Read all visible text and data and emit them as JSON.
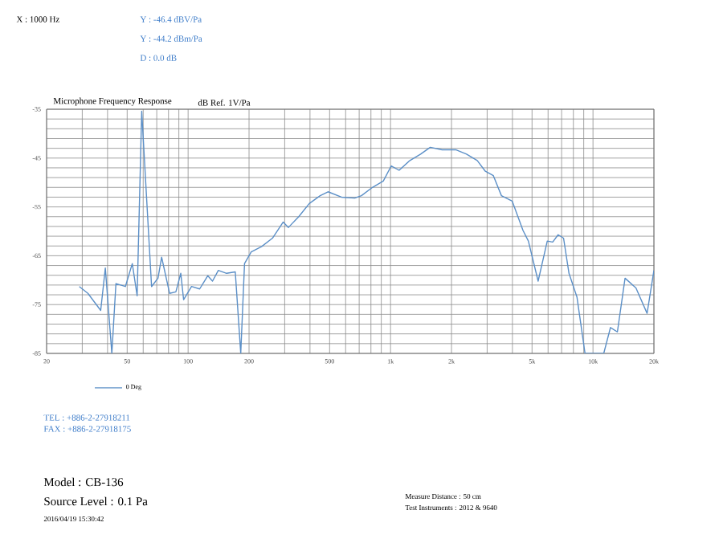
{
  "chart_data": {
    "type": "line",
    "title": "Microphone Frequency Response",
    "subtitle": "dB Ref. 1V/Pa",
    "annotations": [
      "X : 1000 Hz",
      "Y : -46.4 dBV/Pa",
      "Y : -44.2 dBm/Pa",
      "D : 0.0 dB",
      "TEL : +886-2-27918211",
      "FAX : +886-2-27918175",
      "Model : CB-136",
      "Source Level : 0.1 Pa",
      "2016/04/19 15:30:42",
      "Measure Distance : 50 cm",
      "Test Instruments : 2012 & 9640"
    ],
    "log": "x",
    "grid": true,
    "legend": "bottom left",
    "marker": "none",
    "line_style": "solid",
    "xlim": [
      20,
      20000
    ],
    "ylim": [
      -85,
      -35
    ],
    "xticks": [
      20,
      {
        "value": 30,
        "label": null
      },
      {
        "value": 40,
        "label": null
      },
      50,
      {
        "value": 60,
        "label": null
      },
      {
        "value": 70,
        "label": null
      },
      {
        "value": 80,
        "label": null
      },
      {
        "value": 90,
        "label": null
      },
      100,
      200,
      {
        "value": 300,
        "label": null
      },
      {
        "value": 400,
        "label": null
      },
      500,
      {
        "value": 600,
        "label": null
      },
      {
        "value": 700,
        "label": null
      },
      {
        "value": 800,
        "label": null
      },
      {
        "value": 900,
        "label": null
      },
      {
        "value": 1000,
        "label": "1k"
      },
      {
        "value": 2000,
        "label": "2k"
      },
      {
        "value": 3000,
        "label": null
      },
      {
        "value": 4000,
        "label": null
      },
      {
        "value": 5000,
        "label": "5k"
      },
      {
        "value": 6000,
        "label": null
      },
      {
        "value": 7000,
        "label": null
      },
      {
        "value": 8000,
        "label": null
      },
      {
        "value": 9000,
        "label": null
      },
      {
        "value": 10000,
        "label": "10k"
      },
      {
        "value": 20000,
        "label": "20k"
      }
    ],
    "yticks": [
      -85,
      {
        "value": -83,
        "label": null
      },
      {
        "value": -81,
        "label": null
      },
      {
        "value": -79,
        "label": null
      },
      {
        "value": -77,
        "label": null
      },
      -75,
      {
        "value": -73,
        "label": null
      },
      {
        "value": -71,
        "label": null
      },
      {
        "value": -69,
        "label": null
      },
      {
        "value": -67,
        "label": null
      },
      -65,
      {
        "value": -63,
        "label": null
      },
      {
        "value": -61,
        "label": null
      },
      {
        "value": -59,
        "label": null
      },
      {
        "value": -57,
        "label": null
      },
      -55,
      {
        "value": -53,
        "label": null
      },
      {
        "value": -51,
        "label": null
      },
      {
        "value": -49,
        "label": null
      },
      {
        "value": -47,
        "label": null
      },
      -45,
      {
        "value": -43,
        "label": null
      },
      {
        "value": -41,
        "label": null
      },
      {
        "value": -39,
        "label": null
      },
      {
        "value": -37,
        "label": null
      },
      -35
    ],
    "series": [
      {
        "name": "0 Deg",
        "color": "#5b8fc7",
        "x": [
          29,
          32,
          37,
          39,
          42,
          44,
          49,
          53,
          56,
          59,
          66,
          71,
          74,
          81,
          87,
          92,
          95,
          104,
          114,
          125,
          132,
          141,
          155,
          171,
          182,
          190,
          205,
          231,
          261,
          295,
          313,
          352,
          397,
          449,
          491,
          572,
          665,
          718,
          814,
          921,
          1008,
          1102,
          1246,
          1408,
          1571,
          1797,
          2098,
          2372,
          2681,
          2939,
          3220,
          3530,
          3989,
          4509,
          4796,
          5358,
          5945,
          6324,
          6727,
          7155,
          7611,
          8337,
          9133,
          11300,
          12200,
          13200,
          14400,
          16300,
          18500,
          20000
        ],
        "values": [
          -71.3,
          -72.7,
          -76.2,
          -67.5,
          -85,
          -70.7,
          -71.3,
          -66.6,
          -73.2,
          -35.4,
          -71.3,
          -69.6,
          -65.3,
          -72.7,
          -72.4,
          -68.6,
          -74,
          -71.3,
          -71.8,
          -69.1,
          -70.2,
          -68,
          -68.6,
          -68.3,
          -85,
          -66.6,
          -64.2,
          -63.1,
          -61.4,
          -58.1,
          -59.2,
          -57,
          -54.3,
          -52.7,
          -51.9,
          -53,
          -53.2,
          -52.7,
          -51,
          -49.7,
          -46.6,
          -47.5,
          -45.5,
          -44.2,
          -42.8,
          -43.3,
          -43.3,
          -44.2,
          -45.5,
          -47.7,
          -48.6,
          -52.7,
          -53.8,
          -59.8,
          -62,
          -70.2,
          -62,
          -62.2,
          -60.7,
          -61.4,
          -68.6,
          -73.5,
          -85,
          -85,
          -79.7,
          -80.6,
          -69.6,
          -71.6,
          -76.8,
          -68
        ]
      }
    ]
  }
}
